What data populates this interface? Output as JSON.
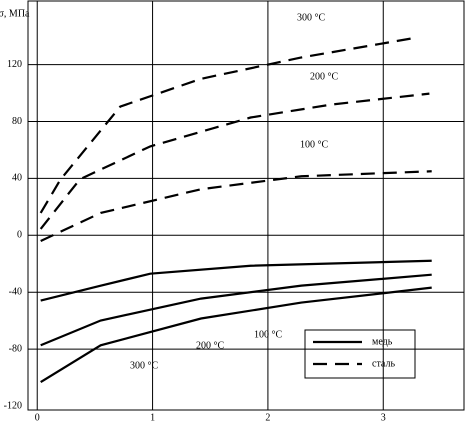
{
  "chart_data": {
    "type": "line",
    "y_label": "σ, МПа",
    "xlim": [
      -0.08,
      3.7
    ],
    "ylim": [
      -120,
      164
    ],
    "xticks": [
      0,
      1,
      2,
      3
    ],
    "yticks": [
      120,
      80,
      40,
      0,
      -40,
      -80,
      -120
    ],
    "grid": true,
    "legend": [
      {
        "label": "медь",
        "style": "solid"
      },
      {
        "label": "сталь",
        "style": "dashed"
      }
    ],
    "series": [
      {
        "name": "300 °C",
        "style": "dashed",
        "x": [
          0.03,
          0.2,
          0.72,
          1.42,
          2.29,
          3.29
        ],
        "values": [
          15.7,
          39,
          90.5,
          110,
          125,
          139
        ]
      },
      {
        "name": "200 °C",
        "style": "dashed",
        "x": [
          0.03,
          0.37,
          0.98,
          1.85,
          2.55,
          3.4
        ],
        "values": [
          4.5,
          39.4,
          62.5,
          82.8,
          91.9,
          99.6
        ]
      },
      {
        "name": "100 °C",
        "style": "dashed",
        "x": [
          0.03,
          0.55,
          1.42,
          2.29,
          3.42
        ],
        "values": [
          -4,
          15.7,
          32.4,
          41.5,
          45
        ]
      },
      {
        "name": "100 °C",
        "style": "solid",
        "x": [
          0.03,
          0.55,
          0.98,
          1.85,
          3.42
        ],
        "values": [
          -45.9,
          -35.4,
          -27,
          -21.4,
          -17.9
        ]
      },
      {
        "name": "200 °C",
        "style": "solid",
        "x": [
          0.03,
          0.55,
          1.42,
          2.29,
          3.42
        ],
        "values": [
          -77.3,
          -59.9,
          -44.5,
          -35.4,
          -27.7
        ]
      },
      {
        "name": "300 °C",
        "style": "solid",
        "x": [
          0.03,
          0.55,
          1.42,
          2.29,
          3.42
        ],
        "values": [
          -103.2,
          -77.3,
          -58.5,
          -47.3,
          -36.8
        ]
      }
    ]
  }
}
